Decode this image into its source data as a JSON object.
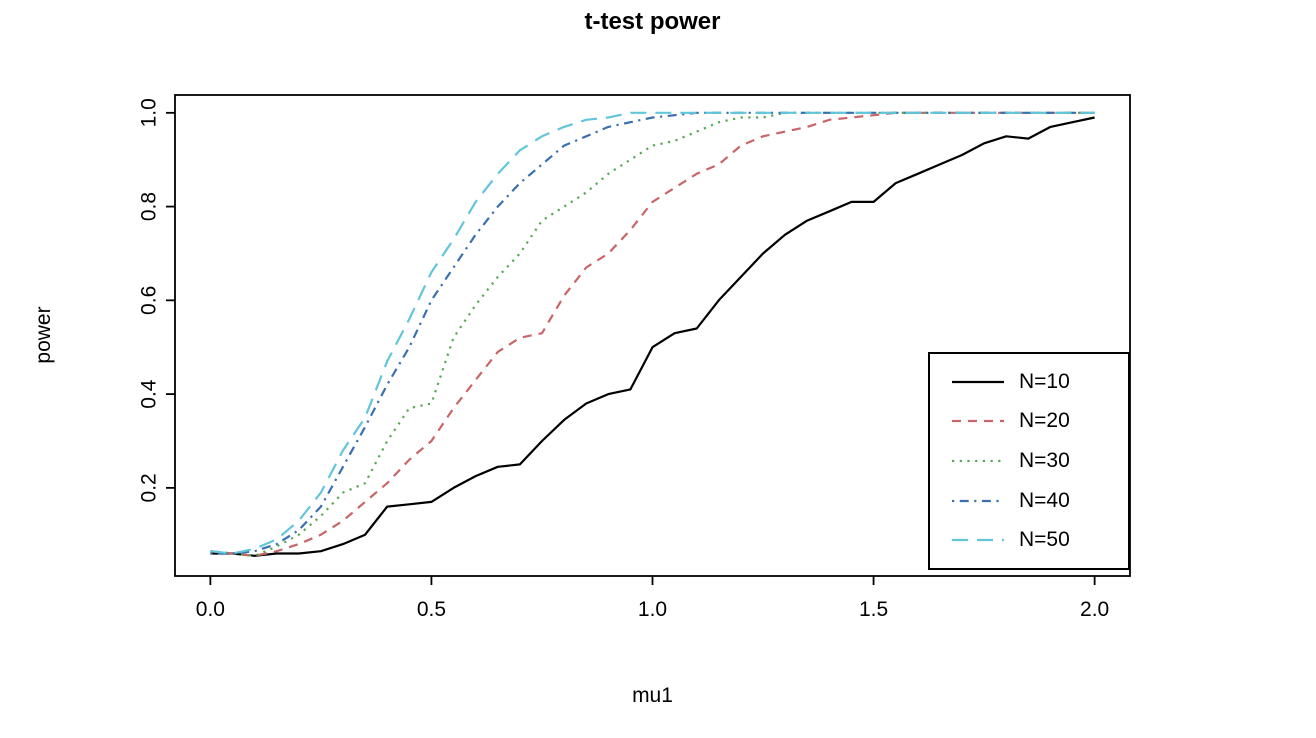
{
  "chart_data": {
    "type": "line",
    "title": "t-test power",
    "xlabel": "mu1",
    "ylabel": "power",
    "xlim": [
      -0.08,
      2.16
    ],
    "ylim": [
      0.012,
      1.038
    ],
    "xlim_note": [
      -0.08,
      2.08
    ],
    "x_ticks": [
      0.0,
      0.5,
      1.0,
      1.5,
      2.0
    ],
    "x_tick_labels": [
      "0.0",
      "0.5",
      "1.0",
      "1.5",
      "2.0"
    ],
    "y_ticks": [
      0.2,
      0.4,
      0.6,
      0.8,
      1.0
    ],
    "y_tick_labels": [
      "0.2",
      "0.4",
      "0.6",
      "0.8",
      "1.0"
    ],
    "grid": false,
    "legend_position": "inside-bottom-right",
    "axis_color": "#000000",
    "x": [
      0,
      0.05,
      0.1,
      0.15,
      0.2,
      0.25,
      0.3,
      0.35,
      0.4,
      0.45,
      0.5,
      0.55,
      0.6,
      0.65,
      0.7,
      0.75,
      0.8,
      0.85,
      0.9,
      0.95,
      1.0,
      1.05,
      1.1,
      1.15,
      1.2,
      1.25,
      1.3,
      1.35,
      1.4,
      1.45,
      1.5,
      1.55,
      1.6,
      1.65,
      1.7,
      1.75,
      1.8,
      1.85,
      1.9,
      1.95,
      2.0
    ],
    "series": [
      {
        "name": "N=10",
        "color": "#000000",
        "linetype": "solid",
        "values": [
          0.06,
          0.06,
          0.055,
          0.06,
          0.06,
          0.065,
          0.08,
          0.1,
          0.16,
          0.165,
          0.17,
          0.2,
          0.225,
          0.245,
          0.25,
          0.3,
          0.345,
          0.38,
          0.4,
          0.41,
          0.5,
          0.53,
          0.54,
          0.6,
          0.65,
          0.7,
          0.74,
          0.77,
          0.79,
          0.81,
          0.81,
          0.85,
          0.87,
          0.89,
          0.91,
          0.935,
          0.95,
          0.945,
          0.97,
          0.98,
          0.99
        ]
      },
      {
        "name": "N=20",
        "color": "#C96567",
        "linetype": "dashed",
        "values": [
          0.065,
          0.06,
          0.055,
          0.065,
          0.08,
          0.1,
          0.13,
          0.17,
          0.21,
          0.26,
          0.3,
          0.37,
          0.43,
          0.49,
          0.52,
          0.53,
          0.61,
          0.67,
          0.7,
          0.75,
          0.81,
          0.84,
          0.87,
          0.89,
          0.93,
          0.95,
          0.96,
          0.97,
          0.985,
          0.99,
          0.995,
          1,
          1,
          1,
          1,
          1,
          1,
          1,
          1,
          1,
          1
        ]
      },
      {
        "name": "N=30",
        "color": "#55A954",
        "linetype": "dotted",
        "values": [
          0.065,
          0.06,
          0.055,
          0.075,
          0.1,
          0.14,
          0.19,
          0.21,
          0.3,
          0.37,
          0.38,
          0.52,
          0.59,
          0.65,
          0.7,
          0.77,
          0.8,
          0.83,
          0.87,
          0.9,
          0.93,
          0.94,
          0.96,
          0.98,
          0.99,
          0.99,
          1,
          1,
          1,
          1,
          1,
          1,
          1,
          1,
          1,
          1,
          1,
          1,
          1,
          1,
          1
        ]
      },
      {
        "name": "N=40",
        "color": "#3A6FB0",
        "linetype": "dotdash",
        "values": [
          0.06,
          0.06,
          0.065,
          0.08,
          0.11,
          0.16,
          0.245,
          0.33,
          0.42,
          0.5,
          0.6,
          0.67,
          0.74,
          0.8,
          0.85,
          0.89,
          0.93,
          0.95,
          0.97,
          0.98,
          0.99,
          0.995,
          1,
          1,
          1,
          1,
          1,
          1,
          1,
          1,
          1,
          1,
          1,
          1,
          1,
          1,
          1,
          1,
          1,
          1,
          1
        ]
      },
      {
        "name": "N=50",
        "color": "#62C6DA",
        "linetype": "longdash",
        "values": [
          0.065,
          0.06,
          0.07,
          0.09,
          0.13,
          0.19,
          0.28,
          0.35,
          0.47,
          0.56,
          0.66,
          0.73,
          0.81,
          0.87,
          0.92,
          0.95,
          0.97,
          0.985,
          0.99,
          1,
          1,
          1,
          1,
          1,
          1,
          1,
          1,
          1,
          1,
          1,
          1,
          1,
          1,
          1,
          1,
          1,
          1,
          1,
          1,
          1,
          1
        ]
      }
    ]
  }
}
